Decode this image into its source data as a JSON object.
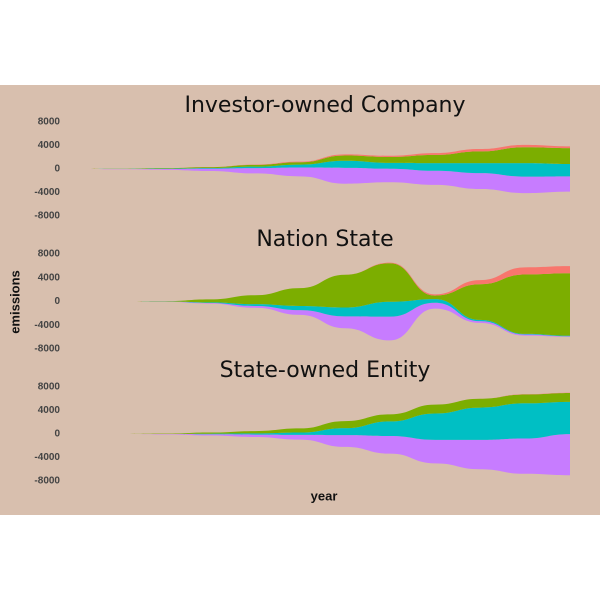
{
  "ylabel": "emissions",
  "xlabel": "year",
  "chart_data": [
    {
      "type": "stream",
      "title": "Investor-owned Company",
      "categories": [
        null,
        null,
        null,
        null,
        null,
        null,
        null,
        null,
        null,
        null,
        null,
        null
      ],
      "ylim": [
        -8000,
        8000
      ],
      "yticks": [
        -8000,
        -4000,
        0,
        4000,
        8000
      ],
      "series": [
        {
          "color": "#C77CFF",
          "values": [
            0,
            50,
            150,
            400,
            900,
            1500,
            2700,
            2300,
            2400,
            2700,
            2800,
            2600
          ]
        },
        {
          "color": "#00BFC4",
          "values": [
            0,
            20,
            50,
            100,
            250,
            500,
            1200,
            1000,
            1300,
            1700,
            2300,
            2100
          ]
        },
        {
          "color": "#7CAE00",
          "values": [
            0,
            20,
            80,
            150,
            300,
            400,
            900,
            1000,
            1400,
            2000,
            2700,
            2700
          ]
        },
        {
          "color": "#F8766D",
          "values": [
            0,
            0,
            0,
            20,
            50,
            100,
            200,
            200,
            300,
            400,
            400,
            300
          ]
        }
      ]
    },
    {
      "type": "stream",
      "title": "Nation State",
      "categories": [
        null,
        null,
        null,
        null,
        null,
        null,
        null,
        null,
        null,
        null,
        null,
        null
      ],
      "ylim": [
        -8000,
        8000
      ],
      "yticks": [
        -8000,
        -4000,
        0,
        4000,
        8000
      ],
      "series": [
        {
          "color": "#C77CFF",
          "values": [
            0,
            0,
            20,
            100,
            300,
            800,
            2000,
            4000,
            1000,
            300,
            200,
            100
          ]
        },
        {
          "color": "#00BFC4",
          "values": [
            0,
            0,
            20,
            100,
            300,
            700,
            1500,
            2500,
            600,
            200,
            100,
            100
          ]
        },
        {
          "color": "#7CAE00",
          "values": [
            0,
            0,
            50,
            500,
            1500,
            3000,
            5500,
            6500,
            600,
            6000,
            10000,
            10500
          ]
        },
        {
          "color": "#F8766D",
          "values": [
            0,
            0,
            0,
            0,
            0,
            0,
            0,
            100,
            200,
            700,
            1200,
            1200
          ]
        }
      ]
    },
    {
      "type": "stream",
      "title": "State-owned Entity",
      "categories": [
        null,
        null,
        null,
        null,
        null,
        null,
        null,
        null,
        null,
        null,
        null,
        null
      ],
      "ylim": [
        -8000,
        8000
      ],
      "yticks": [
        -8000,
        -4000,
        0,
        4000,
        8000
      ],
      "series": [
        {
          "color": "#C77CFF",
          "values": [
            0,
            0,
            50,
            200,
            400,
            800,
            2000,
            3000,
            4000,
            5000,
            6000,
            7000
          ]
        },
        {
          "color": "#00BFC4",
          "values": [
            0,
            0,
            20,
            100,
            200,
            400,
            1200,
            2500,
            4500,
            5500,
            6000,
            5500
          ]
        },
        {
          "color": "#7CAE00",
          "values": [
            0,
            0,
            50,
            200,
            400,
            700,
            1200,
            1200,
            1500,
            1500,
            1500,
            1500
          ]
        },
        {
          "color": "#F8766D",
          "values": [
            0,
            0,
            0,
            0,
            0,
            0,
            0,
            0,
            0,
            0,
            50,
            50
          ]
        }
      ]
    }
  ]
}
